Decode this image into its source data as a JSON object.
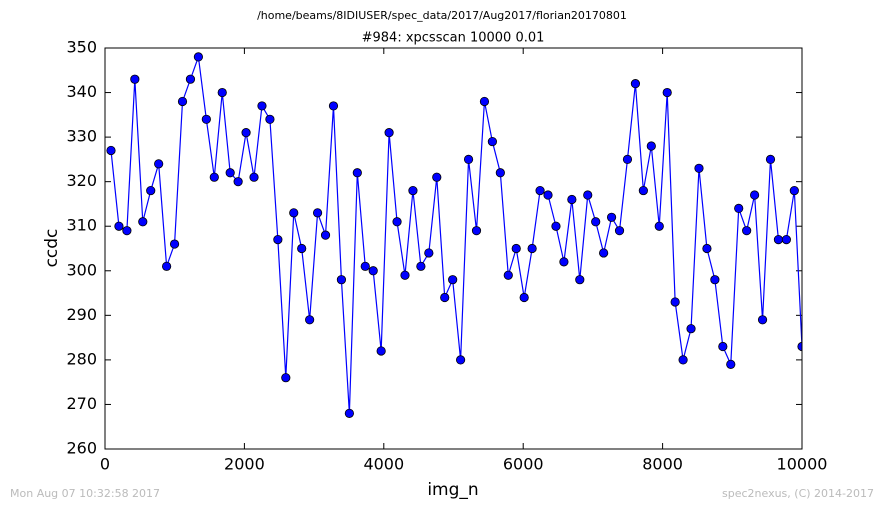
{
  "chart_data": {
    "type": "line",
    "suptitle": "/home/beams/8IDIUSER/spec_data/2017/Aug2017/florian20170801",
    "title": "#984: xpcsscan 10000 0.01",
    "xlabel": "img_n",
    "ylabel": "ccdc",
    "footer_left": "Mon Aug 07 10:32:58 2017",
    "footer_right": "spec2nexus, (C) 2014-2017",
    "xlim": [
      0,
      10000
    ],
    "xticks": [
      0,
      2000,
      4000,
      6000,
      8000,
      10000
    ],
    "ylim": [
      260,
      350
    ],
    "yticks": [
      260,
      270,
      280,
      290,
      300,
      310,
      320,
      330,
      340,
      350
    ],
    "grid": false,
    "x": [
      86,
      200,
      314,
      428,
      542,
      656,
      770,
      884,
      998,
      1112,
      1226,
      1340,
      1454,
      1568,
      1682,
      1796,
      1910,
      2024,
      2138,
      2252,
      2366,
      2480,
      2594,
      2708,
      2822,
      2936,
      3050,
      3164,
      3278,
      3392,
      3506,
      3620,
      3734,
      3848,
      3962,
      4076,
      4190,
      4304,
      4418,
      4532,
      4646,
      4760,
      4874,
      4988,
      5102,
      5216,
      5330,
      5444,
      5558,
      5672,
      5786,
      5900,
      6014,
      6128,
      6242,
      6356,
      6470,
      6584,
      6698,
      6812,
      6926,
      7040,
      7154,
      7268,
      7382,
      7496,
      7610,
      7724,
      7838,
      7952,
      8066,
      8180,
      8294,
      8408,
      8522,
      8636,
      8750,
      8864,
      8978,
      9092,
      9206,
      9320,
      9434,
      9548,
      9662,
      9776,
      9890,
      10000
    ],
    "series": [
      {
        "color": "#0000ff",
        "marker_edge": "#000000",
        "values": [
          327,
          310,
          309,
          343,
          311,
          318,
          324,
          301,
          306,
          338,
          343,
          348,
          334,
          321,
          340,
          322,
          320,
          331,
          321,
          337,
          334,
          307,
          276,
          313,
          305,
          289,
          313,
          308,
          337,
          298,
          268,
          322,
          301,
          300,
          282,
          331,
          311,
          299,
          318,
          301,
          304,
          321,
          294,
          298,
          280,
          325,
          309,
          338,
          329,
          322,
          299,
          305,
          294,
          305,
          318,
          317,
          310,
          302,
          316,
          298,
          317,
          311,
          304,
          312,
          309,
          325,
          342,
          318,
          328,
          310,
          340,
          293,
          280,
          287,
          323,
          305,
          298,
          283,
          279,
          314,
          309,
          317,
          289,
          325,
          307,
          307,
          318,
          283
        ]
      }
    ]
  }
}
